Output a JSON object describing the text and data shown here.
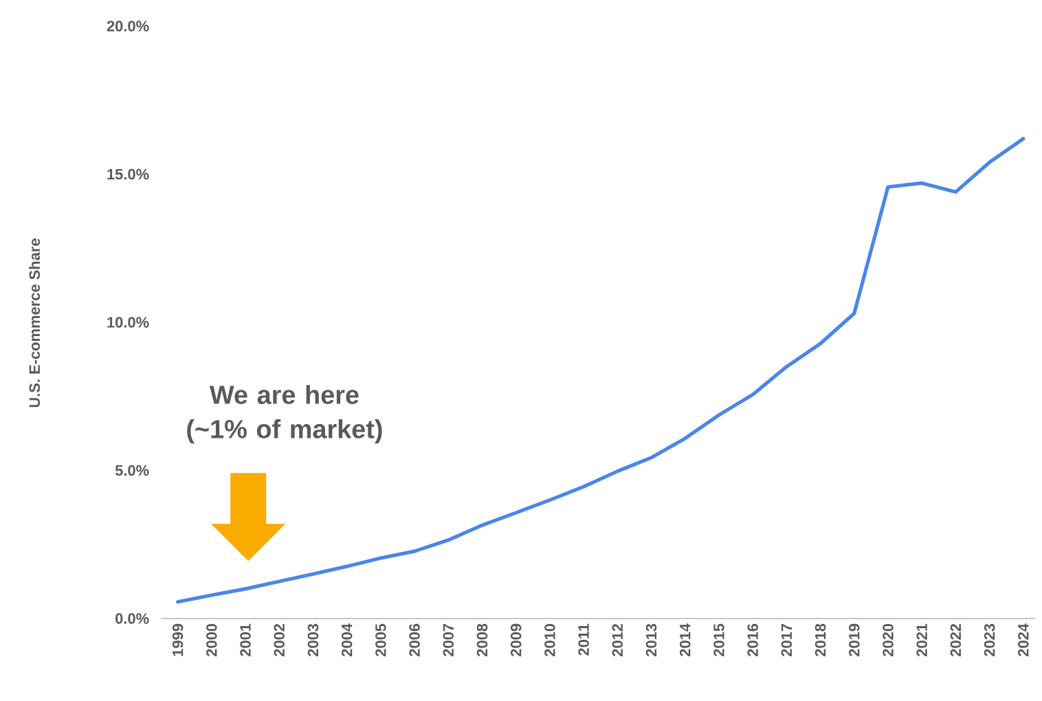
{
  "chart_data": {
    "type": "line",
    "ylabel": "U.S. E-commerce Share",
    "categories": [
      "1999",
      "2000",
      "2001",
      "2002",
      "2003",
      "2004",
      "2005",
      "2006",
      "2007",
      "2008",
      "2009",
      "2010",
      "2011",
      "2012",
      "2013",
      "2014",
      "2015",
      "2016",
      "2017",
      "2018",
      "2019",
      "2020",
      "2021",
      "2022",
      "2023",
      "2024"
    ],
    "series": [
      {
        "color": "#4a86e8",
        "values": [
          0.56,
          0.79,
          1.0,
          1.25,
          1.5,
          1.76,
          2.04,
          2.27,
          2.65,
          3.15,
          3.57,
          4.0,
          4.45,
          4.97,
          5.43,
          6.08,
          6.87,
          7.56,
          8.5,
          9.28,
          10.3,
          14.57,
          14.7,
          14.4,
          15.4,
          16.2
        ]
      }
    ],
    "ylim": [
      0,
      20
    ],
    "yticks": [
      {
        "value": 0,
        "label": "0.0%"
      },
      {
        "value": 5,
        "label": "5.0%"
      },
      {
        "value": 10,
        "label": "10.0%"
      },
      {
        "value": 15,
        "label": "15.0%"
      },
      {
        "value": 20,
        "label": "20.0%"
      }
    ],
    "grid": false,
    "marker": "none",
    "line_style": "solid",
    "annotations": [
      "We are here (~1% of market)"
    ]
  }
}
